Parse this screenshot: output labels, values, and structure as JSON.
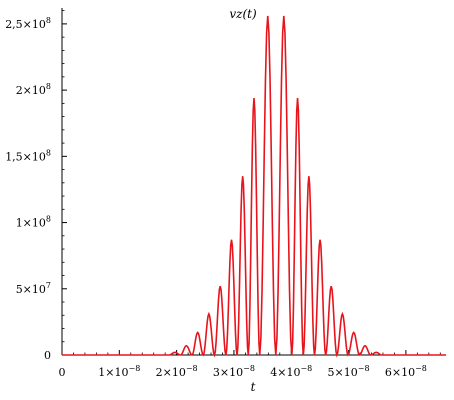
{
  "chart_data": {
    "type": "line",
    "title": "vz(t)",
    "xlabel": "t",
    "ylabel": "",
    "xlim": [
      0,
      6.7e-08
    ],
    "ylim": [
      0,
      262000000.0
    ],
    "grid": false,
    "x_ticks": [
      {
        "value": 0,
        "label": "0"
      },
      {
        "value": 1e-08,
        "label": "1×10",
        "exp": "−8"
      },
      {
        "value": 2e-08,
        "label": "2×10",
        "exp": "−8"
      },
      {
        "value": 3e-08,
        "label": "3×10",
        "exp": "−8"
      },
      {
        "value": 4e-08,
        "label": "4×10",
        "exp": "−8"
      },
      {
        "value": 5e-08,
        "label": "5×10",
        "exp": "−8"
      },
      {
        "value": 6e-08,
        "label": "6×10",
        "exp": "−8"
      }
    ],
    "y_ticks": [
      {
        "value": 0,
        "label": "0"
      },
      {
        "value": 50000000.0,
        "label": "5×10",
        "exp": "7"
      },
      {
        "value": 100000000.0,
        "label": "1×10",
        "exp": "8"
      },
      {
        "value": 150000000.0,
        "label": "1,5×10",
        "exp": "8"
      },
      {
        "value": 200000000.0,
        "label": "2×10",
        "exp": "8"
      },
      {
        "value": 250000000.0,
        "label": "2,5×10",
        "exp": "8"
      }
    ],
    "series": [
      {
        "color": "#e8141c",
        "peaks": [
          {
            "x": 1.97e-08,
            "y": 2000000.0
          },
          {
            "x": 2.17e-08,
            "y": 7000000.0
          },
          {
            "x": 2.37e-08,
            "y": 17000000.0
          },
          {
            "x": 2.56e-08,
            "y": 31000000.0
          },
          {
            "x": 2.76e-08,
            "y": 52000000.0
          },
          {
            "x": 2.96e-08,
            "y": 87000000.0
          },
          {
            "x": 3.15e-08,
            "y": 135000000.0
          },
          {
            "x": 3.35e-08,
            "y": 194000000.0
          },
          {
            "x": 3.55e-08,
            "y": 256000000.0
          },
          {
            "x": 3.91e-08,
            "y": 256000000.0
          },
          {
            "x": 4.11e-08,
            "y": 194000000.0
          },
          {
            "x": 4.31e-08,
            "y": 135000000.0
          },
          {
            "x": 4.5e-08,
            "y": 87000000.0
          },
          {
            "x": 4.7e-08,
            "y": 52000000.0
          },
          {
            "x": 4.89e-08,
            "y": 31000000.0
          },
          {
            "x": 5.09e-08,
            "y": 17000000.0
          },
          {
            "x": 5.29e-08,
            "y": 7000000.0
          },
          {
            "x": 5.48e-08,
            "y": 2000000.0
          }
        ]
      }
    ]
  }
}
